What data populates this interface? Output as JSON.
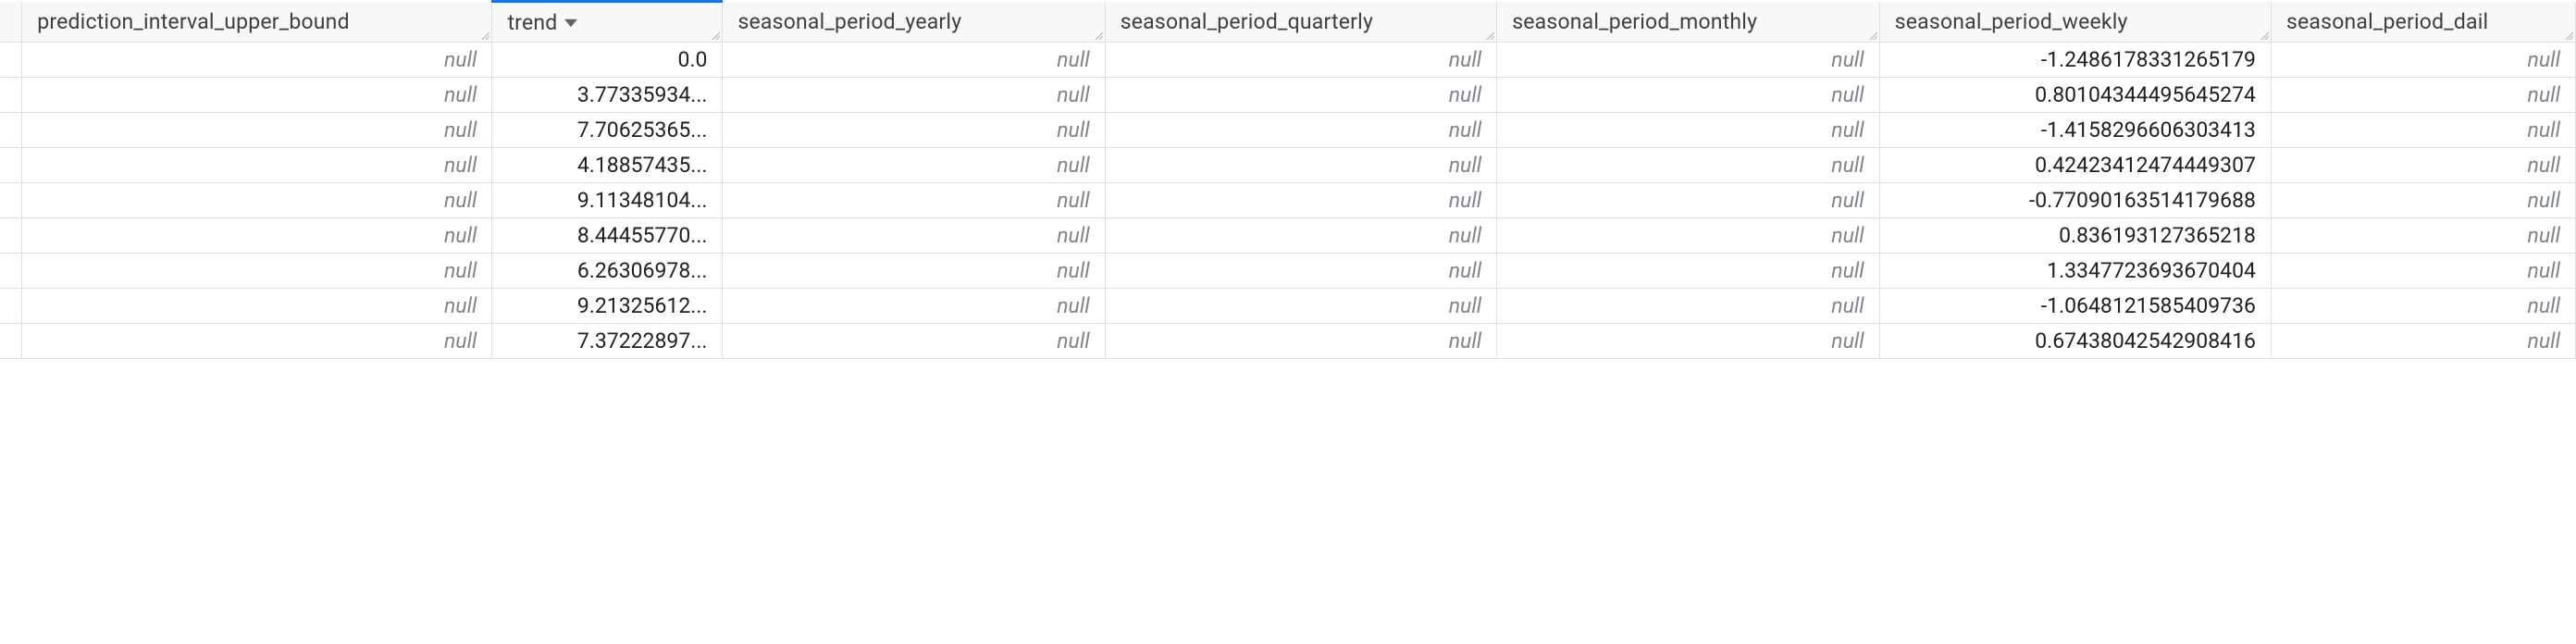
{
  "table": {
    "columns": [
      {
        "key": "leading",
        "label": "",
        "class": "col-leading",
        "sorted": false
      },
      {
        "key": "piu",
        "label": "prediction_interval_upper_bound",
        "class": "col-piu",
        "sorted": false
      },
      {
        "key": "trend",
        "label": "trend",
        "class": "col-trend",
        "sorted": true
      },
      {
        "key": "spy",
        "label": "seasonal_period_yearly",
        "class": "col-spy",
        "sorted": false
      },
      {
        "key": "spq",
        "label": "seasonal_period_quarterly",
        "class": "col-spq",
        "sorted": false
      },
      {
        "key": "spm",
        "label": "seasonal_period_monthly",
        "class": "col-spm",
        "sorted": false
      },
      {
        "key": "spw",
        "label": "seasonal_period_weekly",
        "class": "col-spw",
        "sorted": false
      },
      {
        "key": "spd",
        "label": "seasonal_period_dail",
        "class": "col-spd",
        "sorted": false
      }
    ],
    "rows": [
      {
        "piu": null,
        "trend": "0.0",
        "spy": null,
        "spq": null,
        "spm": null,
        "spw": "-1.2486178331265179",
        "spd": null
      },
      {
        "piu": null,
        "trend": "3.77335934...",
        "spy": null,
        "spq": null,
        "spm": null,
        "spw": "0.80104344495645274",
        "spd": null
      },
      {
        "piu": null,
        "trend": "7.70625365...",
        "spy": null,
        "spq": null,
        "spm": null,
        "spw": "-1.4158296606303413",
        "spd": null
      },
      {
        "piu": null,
        "trend": "4.18857435...",
        "spy": null,
        "spq": null,
        "spm": null,
        "spw": "0.42423412474449307",
        "spd": null
      },
      {
        "piu": null,
        "trend": "9.11348104...",
        "spy": null,
        "spq": null,
        "spm": null,
        "spw": "-0.77090163514179688",
        "spd": null
      },
      {
        "piu": null,
        "trend": "8.44455770...",
        "spy": null,
        "spq": null,
        "spm": null,
        "spw": "0.836193127365218",
        "spd": null
      },
      {
        "piu": null,
        "trend": "6.26306978...",
        "spy": null,
        "spq": null,
        "spm": null,
        "spw": "1.3347723693670404",
        "spd": null
      },
      {
        "piu": null,
        "trend": "9.21325612...",
        "spy": null,
        "spq": null,
        "spm": null,
        "spw": "-1.0648121585409736",
        "spd": null
      },
      {
        "piu": null,
        "trend": "7.37222897...",
        "spy": null,
        "spq": null,
        "spm": null,
        "spw": "0.67438042542908416",
        "spd": null
      }
    ],
    "null_label": "null",
    "colors": {
      "header_bg": "#f8f8f8",
      "sort_indicator": "#1a73e8",
      "border": "#e0e0e0",
      "null_text": "#80868b",
      "text": "#202124"
    }
  }
}
